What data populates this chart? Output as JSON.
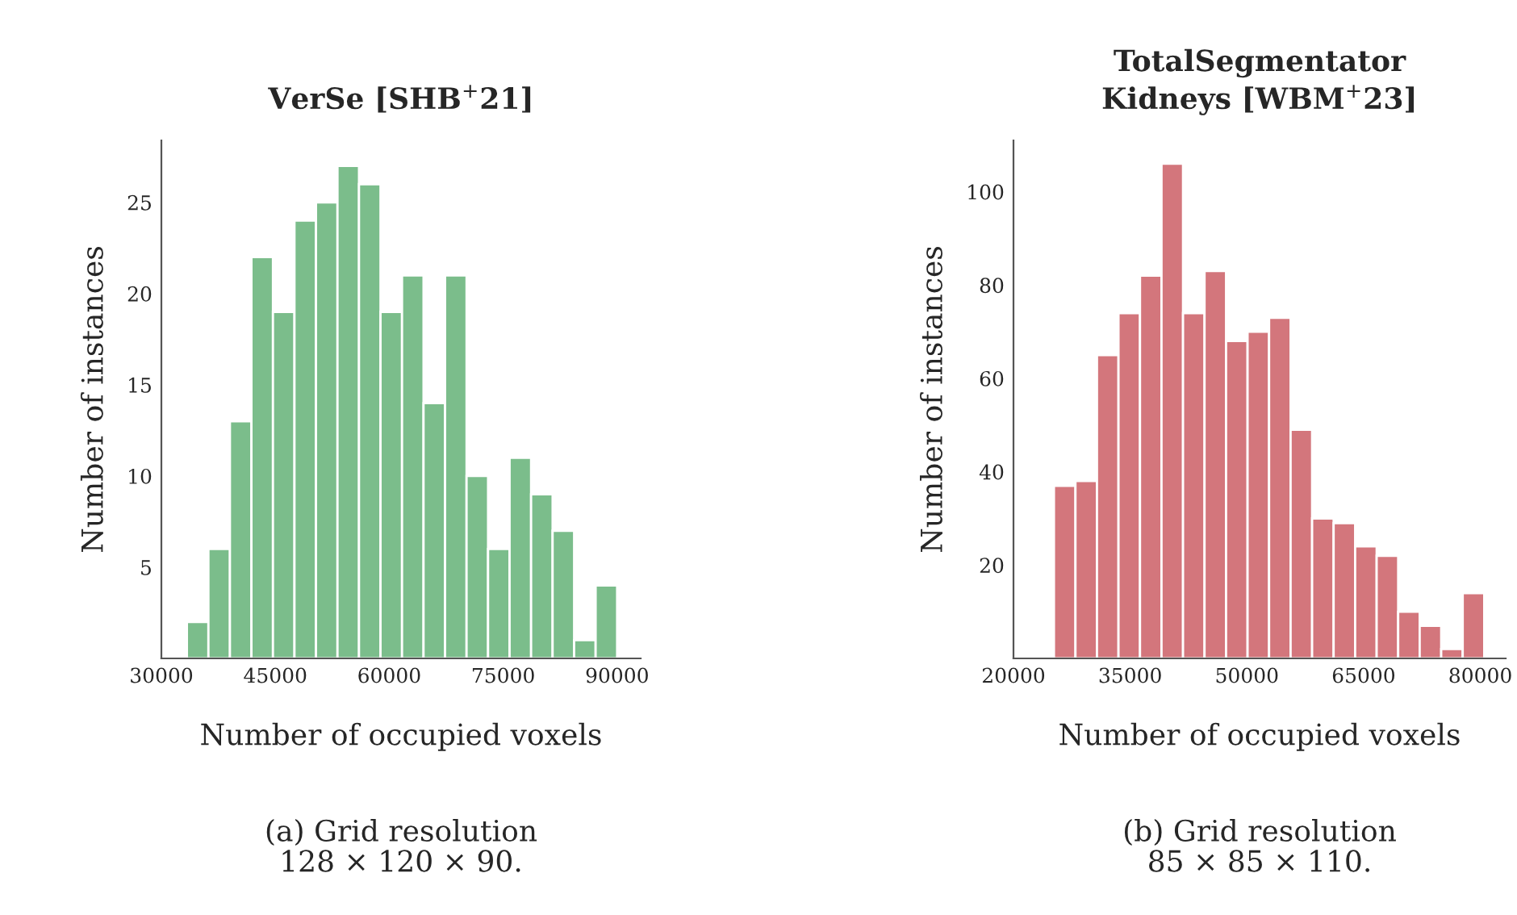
{
  "chart_data": [
    {
      "type": "histogram",
      "title": "VerSe [SHB$^{+}$21]",
      "xlabel": "Number of occupied voxels",
      "ylabel": "Number of instances",
      "color": "#7bbd8b",
      "bins": [
        33360,
        36192,
        39024,
        41856,
        44688,
        47520,
        50352,
        53184,
        56016,
        58848,
        61680,
        64512,
        67344,
        70176,
        73008,
        75840,
        78672,
        81504,
        84336,
        87168,
        90000
      ],
      "values": [
        2,
        6,
        13,
        22,
        19,
        24,
        25,
        27,
        26,
        19,
        21,
        14,
        21,
        10,
        6,
        11,
        9,
        7,
        1,
        4
      ],
      "xlim": [
        30000,
        93100
      ],
      "ylim": [
        0,
        28.4
      ],
      "xticks": [
        30000,
        45000,
        60000,
        75000,
        90000
      ],
      "yticks": [
        5,
        10,
        15,
        20,
        25
      ],
      "grid": false,
      "annotations": [
        "(a) Grid resolution\n128 × 120 × 90."
      ]
    },
    {
      "type": "histogram",
      "title": "TotalSegmentator\nKidneys [WBM$^{+}$23]",
      "xlabel": "Number of occupied voxels",
      "ylabel": "Number of instances",
      "color": "#d3767c",
      "bins": [
        25200,
        27965,
        30730,
        33495,
        36260,
        39025,
        41790,
        44555,
        47320,
        50085,
        52850,
        55615,
        58380,
        61145,
        63910,
        66675,
        69440,
        72205,
        74970,
        77735,
        80500
      ],
      "values": [
        37,
        38,
        65,
        74,
        82,
        106,
        74,
        83,
        68,
        70,
        73,
        49,
        30,
        29,
        24,
        22,
        10,
        7,
        2,
        14
      ],
      "xlim": [
        20000,
        83260
      ],
      "ylim": [
        0,
        111
      ],
      "xticks": [
        20000,
        35000,
        50000,
        65000,
        80000
      ],
      "yticks": [
        20,
        40,
        60,
        80,
        100
      ],
      "grid": false,
      "annotations": [
        "(b) Grid resolution\n85 × 85 × 110."
      ]
    }
  ]
}
